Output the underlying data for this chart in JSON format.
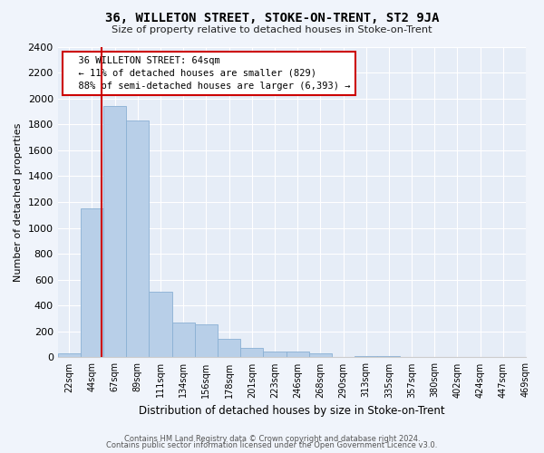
{
  "title": "36, WILLETON STREET, STOKE-ON-TRENT, ST2 9JA",
  "subtitle": "Size of property relative to detached houses in Stoke-on-Trent",
  "xlabel": "Distribution of detached houses by size in Stoke-on-Trent",
  "ylabel": "Number of detached properties",
  "footer_line1": "Contains HM Land Registry data © Crown copyright and database right 2024.",
  "footer_line2": "Contains public sector information licensed under the Open Government Licence v3.0.",
  "annotation_title": "36 WILLETON STREET: 64sqm",
  "annotation_line1": "← 11% of detached houses are smaller (829)",
  "annotation_line2": "88% of semi-detached houses are larger (6,393) →",
  "bar_color": "#b8cfe8",
  "bar_edge_color": "#8ab0d4",
  "marker_color": "#cc0000",
  "annotation_box_color": "#ffffff",
  "annotation_box_edge": "#cc0000",
  "bin_labels": [
    "22sqm",
    "44sqm",
    "67sqm",
    "89sqm",
    "111sqm",
    "134sqm",
    "156sqm",
    "178sqm",
    "201sqm",
    "223sqm",
    "246sqm",
    "268sqm",
    "290sqm",
    "313sqm",
    "335sqm",
    "357sqm",
    "380sqm",
    "402sqm",
    "424sqm",
    "447sqm",
    "469sqm"
  ],
  "bar_values": [
    30,
    1150,
    1940,
    1830,
    510,
    270,
    255,
    145,
    70,
    42,
    42,
    33,
    5,
    12,
    8,
    5,
    2,
    2,
    2,
    2
  ],
  "ylim": [
    0,
    2400
  ],
  "yticks": [
    0,
    200,
    400,
    600,
    800,
    1000,
    1200,
    1400,
    1600,
    1800,
    2000,
    2200,
    2400
  ],
  "figsize": [
    6.0,
    5.0
  ],
  "dpi": 100,
  "background_color": "#f0f4fb",
  "plot_bg_color": "#e6edf7"
}
